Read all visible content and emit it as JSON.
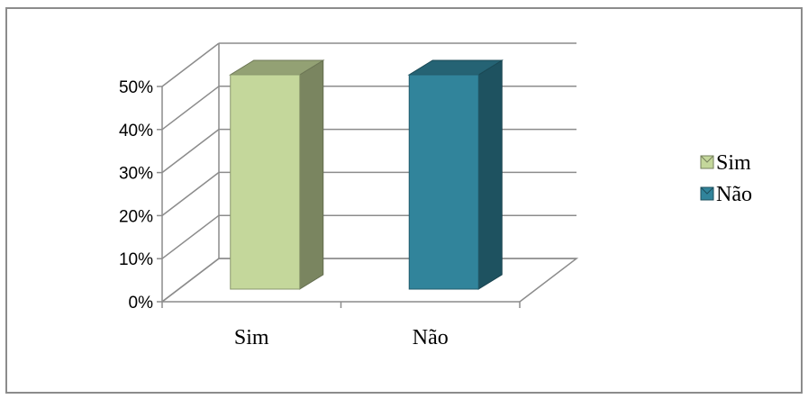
{
  "chart_data": {
    "type": "bar",
    "style": "3d-column",
    "categories": [
      "Sim",
      "Não"
    ],
    "values": [
      0.5,
      0.5
    ],
    "colors": [
      "#c4d79b",
      "#31849b"
    ],
    "ylim": [
      0,
      0.5
    ],
    "yticks": [
      "0%",
      "10%",
      "20%",
      "30%",
      "40%",
      "50%"
    ],
    "grid": true,
    "legend": {
      "position": "right",
      "entries": [
        {
          "label": "Sim",
          "color": "#c4d79b"
        },
        {
          "label": "Não",
          "color": "#31849b"
        }
      ]
    }
  }
}
